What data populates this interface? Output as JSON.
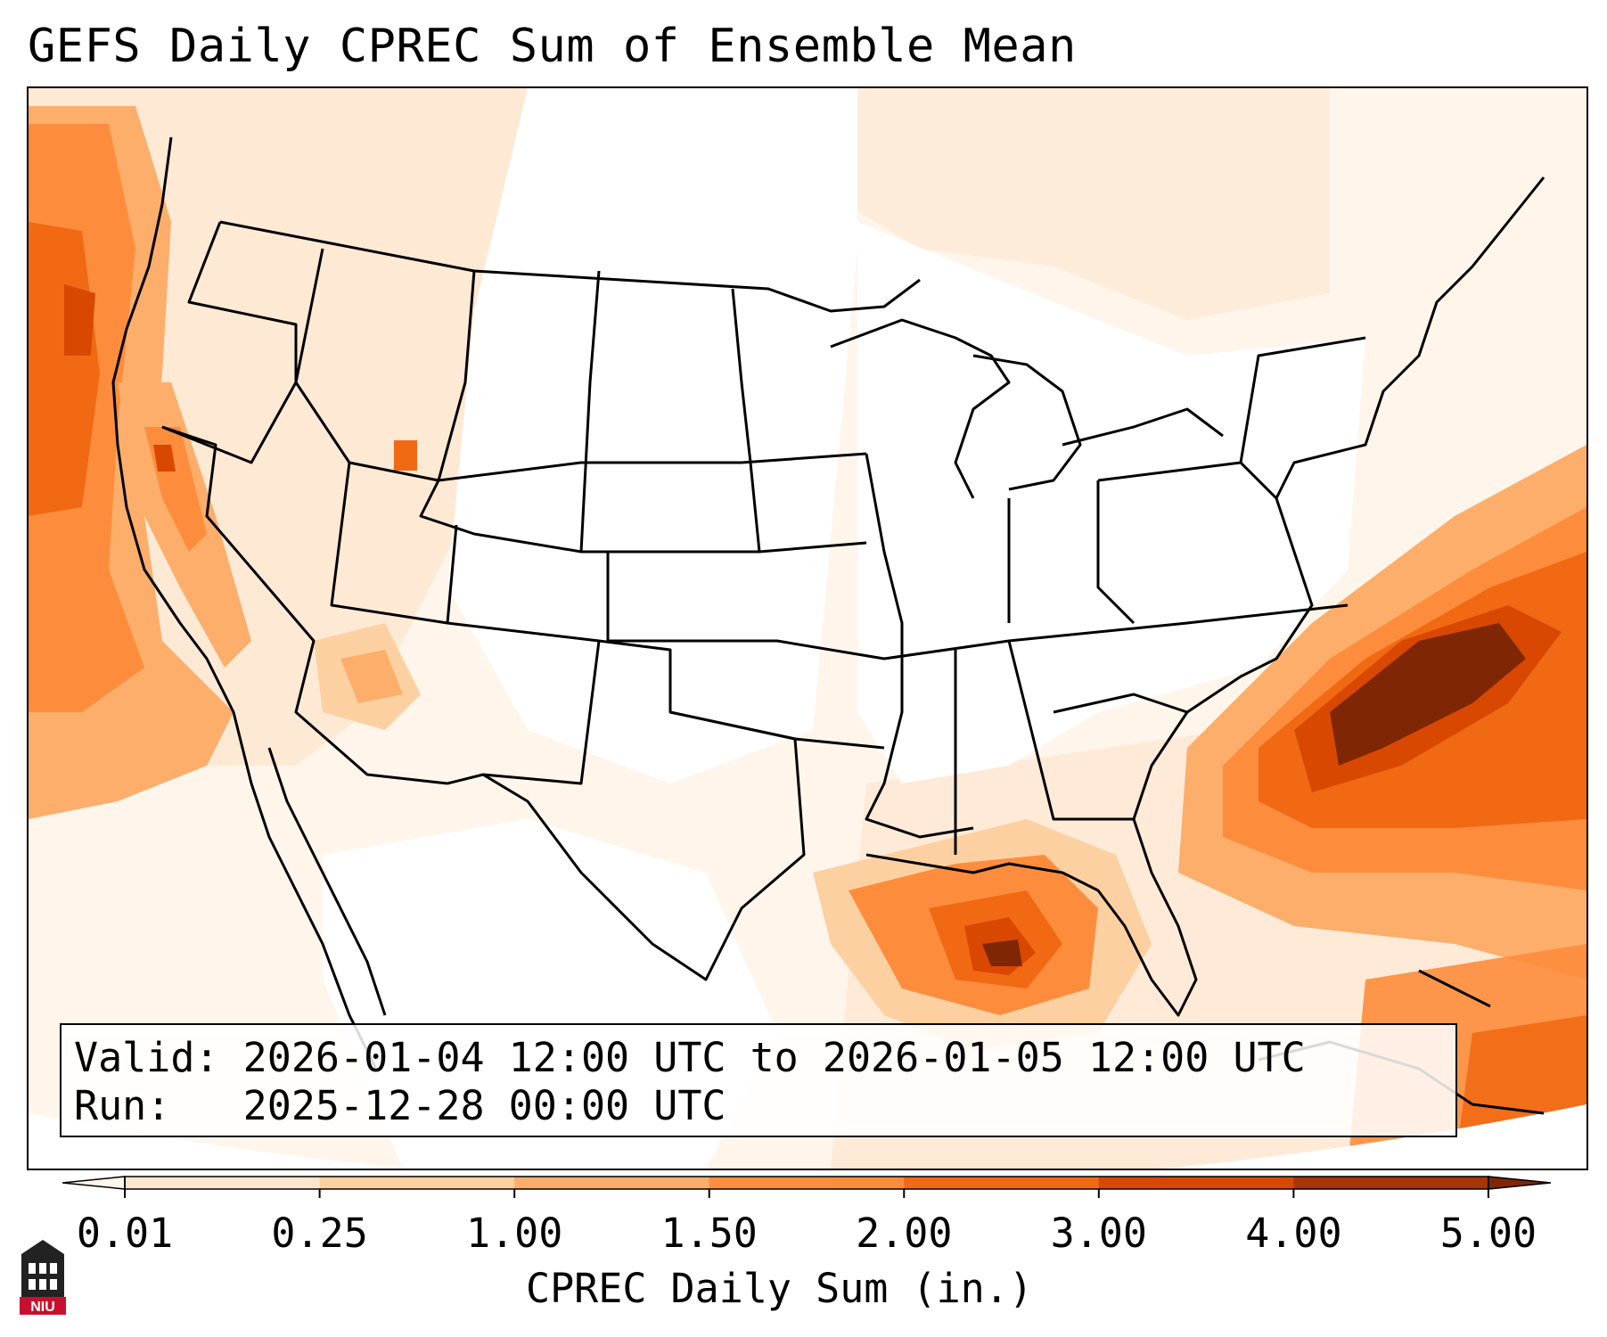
{
  "title": "GEFS Daily CPREC Sum of Ensemble Mean",
  "info": {
    "valid_label": "Valid:",
    "valid_value": "2026-01-04 12:00 UTC to 2026-01-05 12:00 UTC",
    "run_label": "Run:",
    "run_value": "2025-12-28 00:00 UTC"
  },
  "colorbar": {
    "label": "CPREC Daily Sum (in.)",
    "ticks": [
      "0.01",
      "0.25",
      "1.00",
      "1.50",
      "2.00",
      "3.00",
      "4.00",
      "5.00"
    ],
    "colors": [
      "#fff5eb",
      "#fee6ce",
      "#fdd0a2",
      "#fdae6b",
      "#fd8d3c",
      "#f16913",
      "#d94801",
      "#a63603",
      "#7f2704"
    ]
  },
  "logo": {
    "text": "NIU",
    "color": "#c8102e"
  }
}
